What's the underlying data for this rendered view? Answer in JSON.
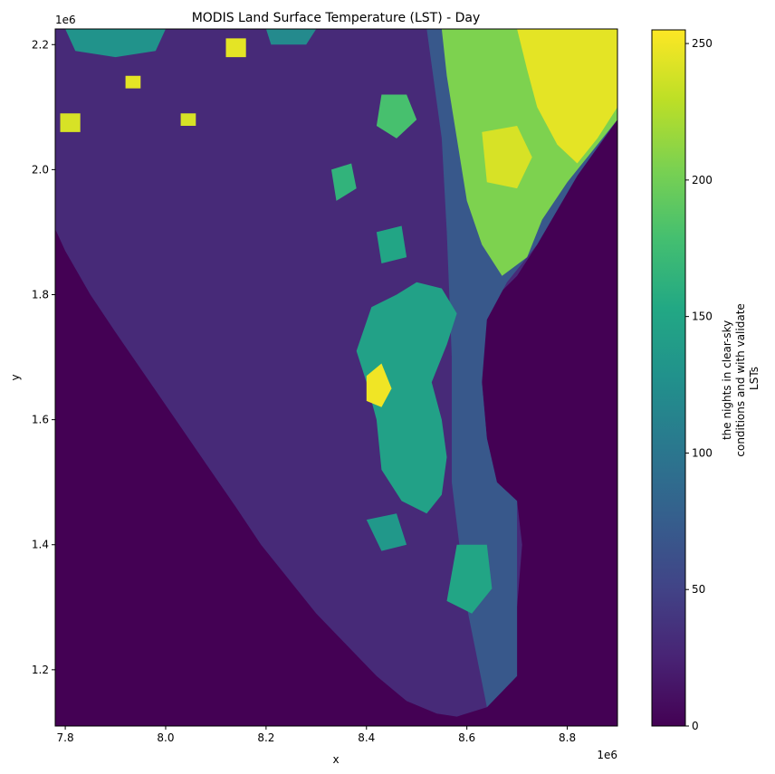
{
  "chart_data": {
    "type": "heatmap",
    "title": "MODIS Land Surface Temperature (LST) - Day",
    "xlabel": "x",
    "ylabel": "y",
    "x_offset_label": "1e6",
    "y_offset_label": "1e6",
    "xlim": [
      7.78,
      8.9
    ],
    "ylim": [
      1.11,
      2.225
    ],
    "xticks": [
      {
        "value": 7.8,
        "label": "7.8"
      },
      {
        "value": 8.0,
        "label": "8.0"
      },
      {
        "value": 8.2,
        "label": "8.2"
      },
      {
        "value": 8.4,
        "label": "8.4"
      },
      {
        "value": 8.6,
        "label": "8.6"
      },
      {
        "value": 8.8,
        "label": "8.8"
      }
    ],
    "yticks": [
      {
        "value": 1.2,
        "label": "1.2"
      },
      {
        "value": 1.4,
        "label": "1.4"
      },
      {
        "value": 1.6,
        "label": "1.6"
      },
      {
        "value": 1.8,
        "label": "1.8"
      },
      {
        "value": 2.0,
        "label": "2.0"
      },
      {
        "value": 2.2,
        "label": "2.2"
      }
    ],
    "colorbar": {
      "colormap": "viridis",
      "range": [
        0,
        255
      ],
      "label_lines": [
        "the nights in clear-sky",
        "conditions and with validate",
        "LSTs"
      ],
      "ticks": [
        {
          "value": 0,
          "label": "0"
        },
        {
          "value": 50,
          "label": "50"
        },
        {
          "value": 100,
          "label": "100"
        },
        {
          "value": 150,
          "label": "150"
        },
        {
          "value": 200,
          "label": "200"
        },
        {
          "value": 250,
          "label": "250"
        }
      ]
    },
    "nodata_value": 0,
    "regions": [
      {
        "name": "land-background",
        "value": 30,
        "polygon": [
          [
            7.78,
            1.905
          ],
          [
            7.8,
            1.87
          ],
          [
            7.85,
            1.8
          ],
          [
            7.9,
            1.74
          ],
          [
            7.96,
            1.67
          ],
          [
            8.02,
            1.6
          ],
          [
            8.08,
            1.53
          ],
          [
            8.14,
            1.46
          ],
          [
            8.19,
            1.4
          ],
          [
            8.25,
            1.34
          ],
          [
            8.3,
            1.29
          ],
          [
            8.36,
            1.24
          ],
          [
            8.42,
            1.19
          ],
          [
            8.48,
            1.15
          ],
          [
            8.54,
            1.13
          ],
          [
            8.58,
            1.125
          ],
          [
            8.64,
            1.14
          ],
          [
            8.7,
            1.19
          ],
          [
            8.7,
            1.3
          ],
          [
            8.71,
            1.4
          ],
          [
            8.7,
            1.47
          ],
          [
            8.66,
            1.5
          ],
          [
            8.64,
            1.57
          ],
          [
            8.63,
            1.66
          ],
          [
            8.63,
            1.74
          ],
          [
            8.65,
            1.79
          ],
          [
            8.7,
            1.83
          ],
          [
            8.74,
            1.88
          ],
          [
            8.78,
            1.94
          ],
          [
            8.82,
            1.99
          ],
          [
            8.86,
            2.04
          ],
          [
            8.9,
            2.08
          ],
          [
            8.9,
            2.225
          ],
          [
            7.78,
            2.225
          ]
        ]
      },
      {
        "name": "east-swath-band",
        "value": 70,
        "polygon": [
          [
            8.52,
            2.225
          ],
          [
            8.9,
            2.225
          ],
          [
            8.9,
            2.08
          ],
          [
            8.82,
            1.99
          ],
          [
            8.74,
            1.88
          ],
          [
            8.68,
            1.82
          ],
          [
            8.64,
            1.76
          ],
          [
            8.63,
            1.66
          ],
          [
            8.64,
            1.57
          ],
          [
            8.66,
            1.5
          ],
          [
            8.7,
            1.47
          ],
          [
            8.7,
            1.19
          ],
          [
            8.64,
            1.14
          ],
          [
            8.6,
            1.3
          ],
          [
            8.57,
            1.5
          ],
          [
            8.57,
            1.7
          ],
          [
            8.56,
            1.9
          ],
          [
            8.55,
            2.05
          ]
        ]
      },
      {
        "name": "central-ridge",
        "value": 145,
        "polygon": [
          [
            8.41,
            1.78
          ],
          [
            8.46,
            1.8
          ],
          [
            8.5,
            1.82
          ],
          [
            8.55,
            1.81
          ],
          [
            8.58,
            1.77
          ],
          [
            8.56,
            1.72
          ],
          [
            8.53,
            1.66
          ],
          [
            8.55,
            1.6
          ],
          [
            8.56,
            1.54
          ],
          [
            8.55,
            1.48
          ],
          [
            8.52,
            1.45
          ],
          [
            8.47,
            1.47
          ],
          [
            8.43,
            1.52
          ],
          [
            8.42,
            1.6
          ],
          [
            8.4,
            1.66
          ],
          [
            8.38,
            1.71
          ]
        ]
      },
      {
        "name": "coastal-strip",
        "value": 150,
        "polygon": [
          [
            8.58,
            1.4
          ],
          [
            8.64,
            1.4
          ],
          [
            8.65,
            1.33
          ],
          [
            8.61,
            1.29
          ],
          [
            8.56,
            1.31
          ]
        ]
      },
      {
        "name": "northeast-block",
        "value": 205,
        "polygon": [
          [
            8.55,
            2.225
          ],
          [
            8.9,
            2.225
          ],
          [
            8.9,
            2.08
          ],
          [
            8.85,
            2.03
          ],
          [
            8.8,
            1.98
          ],
          [
            8.75,
            1.92
          ],
          [
            8.72,
            1.86
          ],
          [
            8.67,
            1.83
          ],
          [
            8.63,
            1.88
          ],
          [
            8.6,
            1.95
          ],
          [
            8.58,
            2.05
          ],
          [
            8.56,
            2.15
          ]
        ]
      },
      {
        "name": "northeast-hot",
        "value": 245,
        "polygon": [
          [
            8.7,
            2.225
          ],
          [
            8.9,
            2.225
          ],
          [
            8.9,
            2.1
          ],
          [
            8.86,
            2.05
          ],
          [
            8.82,
            2.01
          ],
          [
            8.78,
            2.04
          ],
          [
            8.74,
            2.1
          ],
          [
            8.72,
            2.16
          ]
        ]
      },
      {
        "name": "northeast-hot-2",
        "value": 240,
        "polygon": [
          [
            8.63,
            2.06
          ],
          [
            8.7,
            2.07
          ],
          [
            8.73,
            2.02
          ],
          [
            8.7,
            1.97
          ],
          [
            8.64,
            1.98
          ]
        ]
      },
      {
        "name": "hot-spot-central",
        "value": 250,
        "polygon": [
          [
            8.4,
            1.67
          ],
          [
            8.43,
            1.69
          ],
          [
            8.45,
            1.65
          ],
          [
            8.43,
            1.62
          ],
          [
            8.4,
            1.63
          ]
        ]
      },
      {
        "name": "north-green-1",
        "value": 180,
        "polygon": [
          [
            8.43,
            2.12
          ],
          [
            8.48,
            2.12
          ],
          [
            8.5,
            2.08
          ],
          [
            8.46,
            2.05
          ],
          [
            8.42,
            2.07
          ]
        ]
      },
      {
        "name": "north-green-2",
        "value": 165,
        "polygon": [
          [
            8.33,
            2.0
          ],
          [
            8.37,
            2.01
          ],
          [
            8.38,
            1.97
          ],
          [
            8.34,
            1.95
          ]
        ]
      },
      {
        "name": "northwest-yellow-1",
        "value": 240,
        "polygon": [
          [
            7.79,
            2.09
          ],
          [
            7.83,
            2.09
          ],
          [
            7.83,
            2.06
          ],
          [
            7.79,
            2.06
          ]
        ]
      },
      {
        "name": "northwest-yellow-2",
        "value": 245,
        "polygon": [
          [
            7.92,
            2.15
          ],
          [
            7.95,
            2.15
          ],
          [
            7.95,
            2.13
          ],
          [
            7.92,
            2.13
          ]
        ]
      },
      {
        "name": "northwest-yellow-3",
        "value": 245,
        "polygon": [
          [
            8.12,
            2.21
          ],
          [
            8.16,
            2.21
          ],
          [
            8.16,
            2.18
          ],
          [
            8.12,
            2.18
          ]
        ]
      },
      {
        "name": "northwest-yellow-4",
        "value": 240,
        "polygon": [
          [
            8.03,
            2.09
          ],
          [
            8.06,
            2.09
          ],
          [
            8.06,
            2.07
          ],
          [
            8.03,
            2.07
          ]
        ]
      },
      {
        "name": "north-teal-1",
        "value": 130,
        "polygon": [
          [
            7.8,
            2.225
          ],
          [
            8.0,
            2.225
          ],
          [
            7.98,
            2.19
          ],
          [
            7.9,
            2.18
          ],
          [
            7.82,
            2.19
          ]
        ]
      },
      {
        "name": "north-teal-2",
        "value": 120,
        "polygon": [
          [
            8.2,
            2.225
          ],
          [
            8.3,
            2.225
          ],
          [
            8.28,
            2.2
          ],
          [
            8.21,
            2.2
          ]
        ]
      },
      {
        "name": "west-green-1",
        "value": 150,
        "polygon": [
          [
            8.42,
            1.9
          ],
          [
            8.47,
            1.91
          ],
          [
            8.48,
            1.86
          ],
          [
            8.43,
            1.85
          ]
        ]
      },
      {
        "name": "south-green-1",
        "value": 135,
        "polygon": [
          [
            8.4,
            1.44
          ],
          [
            8.46,
            1.45
          ],
          [
            8.48,
            1.4
          ],
          [
            8.43,
            1.39
          ]
        ]
      }
    ]
  }
}
